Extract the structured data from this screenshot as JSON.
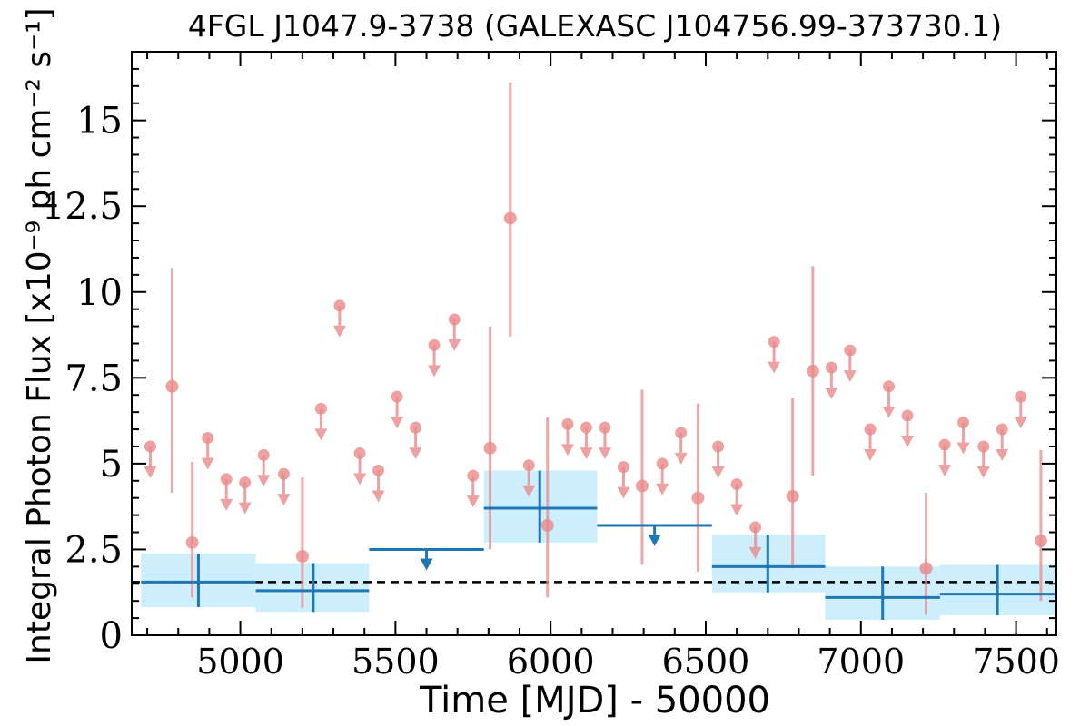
{
  "chart_data": {
    "type": "scatter",
    "title": "4FGL J1047.9-3738 (GALEXASC J104756.99-373730.1)",
    "xlabel": "Time [MJD] - 50000",
    "ylabel": "Integral Photon Flux [x10⁻⁹ ph cm⁻² s⁻¹]",
    "xlim": [
      4650,
      7630
    ],
    "ylim": [
      0,
      17
    ],
    "x_ticks": [
      5000,
      5500,
      6000,
      6500,
      7000,
      7500
    ],
    "x_tick_labels": [
      "5000",
      "5500",
      "6000",
      "6500",
      "7000",
      "7500"
    ],
    "y_ticks": [
      0,
      2.5,
      5,
      7.5,
      10,
      12.5,
      15
    ],
    "y_tick_labels": [
      "0",
      "2.5",
      "5",
      "7.5",
      "10",
      "12.5",
      "15"
    ],
    "mean_flux": 1.55,
    "colors": {
      "fine_bins": "#e88a8a",
      "coarse_bins": "#1f77b4",
      "coarse_band": "#cdeefc",
      "mean_line": "#000000"
    },
    "series": [
      {
        "points": [
          {
            "x": 4780,
            "y": 7.25,
            "lo": 4.15,
            "hi": 10.7
          },
          {
            "x": 4845,
            "y": 2.7,
            "lo": 1.1,
            "hi": 5.05
          },
          {
            "x": 5200,
            "y": 2.3,
            "lo": 0.8,
            "hi": 4.6
          },
          {
            "x": 5805,
            "y": 5.45,
            "lo": 2.5,
            "hi": 9.0
          },
          {
            "x": 5870,
            "y": 12.15,
            "lo": 8.7,
            "hi": 16.1
          },
          {
            "x": 5990,
            "y": 3.2,
            "lo": 1.1,
            "hi": 6.35
          },
          {
            "x": 6295,
            "y": 4.35,
            "lo": 2.05,
            "hi": 7.15
          },
          {
            "x": 6475,
            "y": 4.0,
            "lo": 1.85,
            "hi": 6.75
          },
          {
            "x": 6780,
            "y": 4.05,
            "lo": 1.95,
            "hi": 6.9
          },
          {
            "x": 6845,
            "y": 7.7,
            "lo": 4.65,
            "hi": 10.75
          },
          {
            "x": 7210,
            "y": 1.95,
            "lo": 0.6,
            "hi": 4.15
          },
          {
            "x": 7580,
            "y": 2.75,
            "lo": 1.0,
            "hi": 5.4
          }
        ],
        "upper_limits": [
          {
            "x": 4710,
            "y": 5.5
          },
          {
            "x": 4895,
            "y": 5.75
          },
          {
            "x": 4955,
            "y": 4.55
          },
          {
            "x": 5015,
            "y": 4.45
          },
          {
            "x": 5075,
            "y": 5.25
          },
          {
            "x": 5140,
            "y": 4.7
          },
          {
            "x": 5260,
            "y": 6.6
          },
          {
            "x": 5320,
            "y": 9.6
          },
          {
            "x": 5385,
            "y": 5.3
          },
          {
            "x": 5445,
            "y": 4.8
          },
          {
            "x": 5505,
            "y": 6.95
          },
          {
            "x": 5565,
            "y": 6.05
          },
          {
            "x": 5625,
            "y": 8.45
          },
          {
            "x": 5690,
            "y": 9.2
          },
          {
            "x": 5750,
            "y": 4.65
          },
          {
            "x": 5930,
            "y": 4.95
          },
          {
            "x": 6055,
            "y": 6.15
          },
          {
            "x": 6115,
            "y": 6.05
          },
          {
            "x": 6175,
            "y": 6.05
          },
          {
            "x": 6235,
            "y": 4.9
          },
          {
            "x": 6360,
            "y": 5.0
          },
          {
            "x": 6420,
            "y": 5.9
          },
          {
            "x": 6540,
            "y": 5.5
          },
          {
            "x": 6600,
            "y": 4.4
          },
          {
            "x": 6660,
            "y": 3.15
          },
          {
            "x": 6720,
            "y": 8.55
          },
          {
            "x": 6905,
            "y": 7.8
          },
          {
            "x": 6965,
            "y": 8.3
          },
          {
            "x": 7030,
            "y": 6.0
          },
          {
            "x": 7090,
            "y": 7.25
          },
          {
            "x": 7150,
            "y": 6.4
          },
          {
            "x": 7270,
            "y": 5.55
          },
          {
            "x": 7330,
            "y": 6.2
          },
          {
            "x": 7395,
            "y": 5.5
          },
          {
            "x": 7455,
            "y": 6.0
          },
          {
            "x": 7515,
            "y": 6.95
          }
        ]
      },
      {
        "bins": [
          {
            "x0": 4680,
            "x1": 5050,
            "xc": 4865,
            "y": 1.55,
            "lo": 0.82,
            "hi": 2.38
          },
          {
            "x0": 5050,
            "x1": 5415,
            "xc": 5235,
            "y": 1.3,
            "lo": 0.68,
            "hi": 2.1
          },
          {
            "x0": 5785,
            "x1": 6150,
            "xc": 5965,
            "y": 3.7,
            "lo": 2.7,
            "hi": 4.8
          },
          {
            "x0": 6520,
            "x1": 6885,
            "xc": 6700,
            "y": 2.0,
            "lo": 1.25,
            "hi": 2.93
          },
          {
            "x0": 6885,
            "x1": 7255,
            "xc": 7070,
            "y": 1.1,
            "lo": 0.45,
            "hi": 2.0
          },
          {
            "x0": 7255,
            "x1": 7625,
            "xc": 7440,
            "y": 1.2,
            "lo": 0.58,
            "hi": 2.05
          }
        ],
        "upper_limits": [
          {
            "x0": 5415,
            "x1": 5785,
            "xc": 5600,
            "y": 2.5
          },
          {
            "x0": 6150,
            "x1": 6520,
            "xc": 6335,
            "y": 3.2
          }
        ]
      }
    ],
    "grid": false,
    "legend": "none"
  }
}
